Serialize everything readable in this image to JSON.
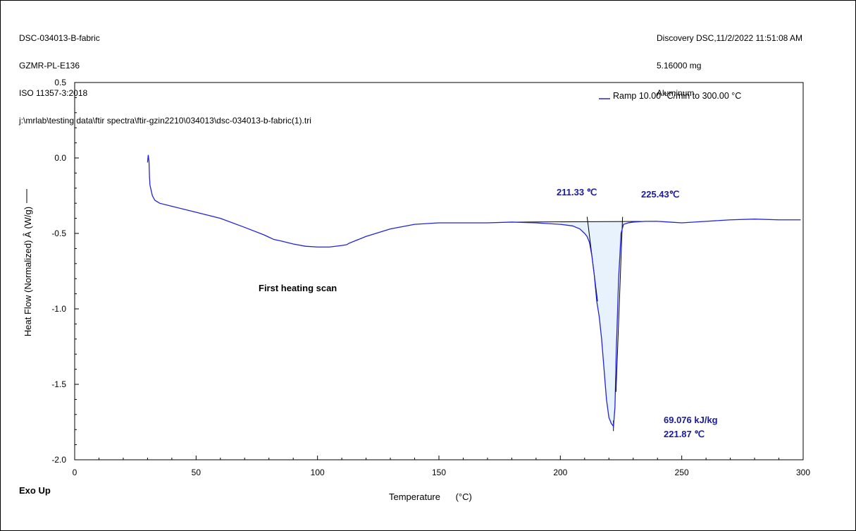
{
  "header": {
    "left": [
      "DSC-034013-B-fabric",
      "GZMR-PL-E136",
      "ISO 11357-3:2018",
      "j:\\mrlab\\testing data\\ftir spectra\\ftir-gzin2210\\034013\\dsc-034013-b-fabric(1).tri"
    ],
    "right": [
      "Discovery DSC,11/2/2022 11:51:08 AM",
      "5.16000 mg",
      "Aluminum"
    ]
  },
  "exo_label": "Exo Up",
  "colors": {
    "curve": "#2222dd",
    "area_fill": "#e8f2fc",
    "annotation": "#1a1aa0"
  },
  "chart_data": {
    "type": "line",
    "xlabel": "Temperature (°C)",
    "ylabel": "Heat Flow (Normalized) Â (W/g)",
    "xlim": [
      0,
      300
    ],
    "ylim": [
      -2.0,
      0.5
    ],
    "xticks": [
      0,
      50,
      100,
      150,
      200,
      250,
      300
    ],
    "xtick_labels": [
      "0",
      "50",
      "100",
      "150",
      "200",
      "250",
      "300"
    ],
    "yticks": [
      0.5,
      0.0,
      -0.5,
      -1.0,
      -1.5,
      -2.0
    ],
    "ytick_labels": [
      "0.5",
      "0.0",
      "-0.5",
      "-1.0",
      "-1.5",
      "-2.0"
    ],
    "grid": false,
    "legend": {
      "position": "top-right",
      "entries": [
        "Ramp 10.00 °C/min to 300.00 °C"
      ]
    },
    "series": [
      {
        "name": "Ramp 10.00 °C/min to 300.00 °C",
        "x": [
          30.0,
          30.3,
          30.6,
          30.8,
          31,
          32,
          33,
          34,
          35,
          40,
          50,
          60,
          70,
          78,
          82,
          85,
          90,
          95,
          100,
          105,
          110,
          112,
          113,
          120,
          130,
          140,
          150,
          160,
          170,
          180,
          190,
          200,
          205,
          208,
          210,
          211,
          212,
          213,
          214,
          215,
          216,
          217,
          218,
          219,
          220,
          221,
          221.5,
          221.9,
          222.5,
          223,
          224,
          225,
          226,
          228,
          230,
          235,
          240,
          245,
          250,
          260,
          270,
          280,
          290,
          299
        ],
        "y": [
          -0.03,
          0.02,
          -0.02,
          -0.12,
          -0.18,
          -0.25,
          -0.28,
          -0.29,
          -0.3,
          -0.32,
          -0.36,
          -0.4,
          -0.46,
          -0.51,
          -0.54,
          -0.55,
          -0.57,
          -0.585,
          -0.59,
          -0.59,
          -0.58,
          -0.575,
          -0.565,
          -0.52,
          -0.47,
          -0.44,
          -0.43,
          -0.43,
          -0.43,
          -0.425,
          -0.43,
          -0.44,
          -0.45,
          -0.47,
          -0.5,
          -0.52,
          -0.56,
          -0.65,
          -0.78,
          -0.95,
          -1.05,
          -1.2,
          -1.4,
          -1.6,
          -1.72,
          -1.76,
          -1.77,
          -1.78,
          -1.65,
          -1.3,
          -0.8,
          -0.5,
          -0.44,
          -0.43,
          -0.425,
          -0.42,
          -0.42,
          -0.425,
          -0.43,
          -0.42,
          -0.41,
          -0.405,
          -0.41,
          -0.41
        ]
      }
    ],
    "annotations": [
      {
        "text": "211.33 ℃",
        "x": 211.33
      },
      {
        "text": "225.43℃",
        "x": 225.43
      },
      {
        "text": "69.076 kJ/kg"
      },
      {
        "text": "221.87 ℃",
        "x": 221.87,
        "y": -1.78
      },
      {
        "text": "First heating scan"
      }
    ],
    "baseline": {
      "x": [
        180,
        240
      ],
      "y": [
        -0.425,
        -0.42
      ]
    },
    "integration_range": [
      211.33,
      225.43
    ]
  }
}
